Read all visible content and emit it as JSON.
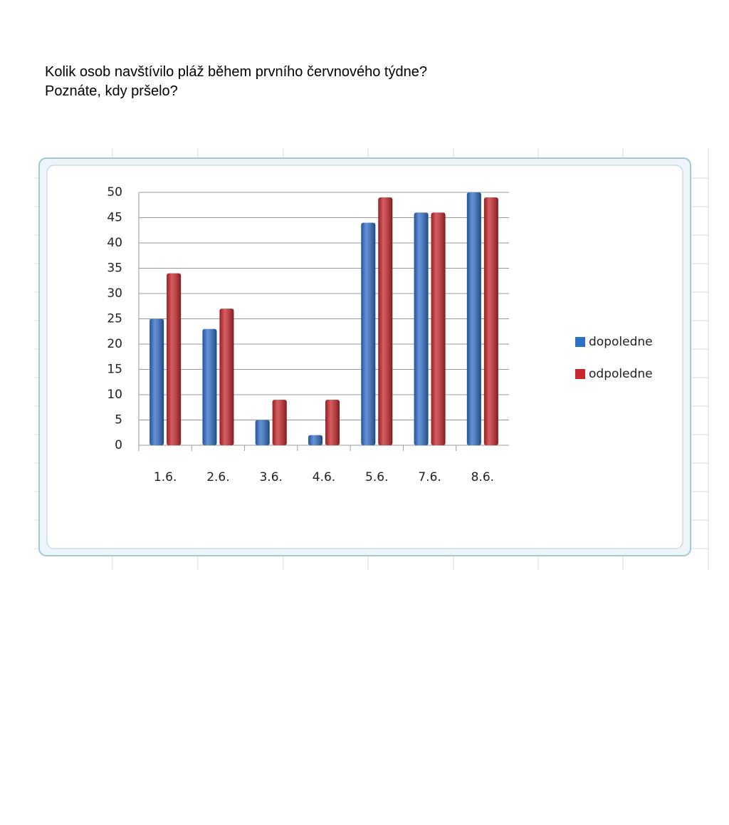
{
  "question": [
    "Kolik osob navštívilo pláž během prvního červnového týdne?",
    "Poznáte, kdy pršelo?"
  ],
  "chart_data": {
    "type": "bar",
    "categories": [
      "1.6.",
      "2.6.",
      "3.6.",
      "4.6.",
      "5.6.",
      "7.6.",
      "8.6."
    ],
    "series": [
      {
        "name": "dopoledne",
        "color": "#2f6fc8",
        "values": [
          25,
          23,
          5,
          2,
          44,
          46,
          50
        ]
      },
      {
        "name": "odpoledne",
        "color": "#c9272c",
        "values": [
          34,
          27,
          9,
          9,
          49,
          46,
          49
        ]
      }
    ],
    "ylim": [
      0,
      50
    ],
    "yticks": [
      0,
      5,
      10,
      15,
      20,
      25,
      30,
      35,
      40,
      45,
      50
    ],
    "grid": true,
    "legend": "right"
  }
}
